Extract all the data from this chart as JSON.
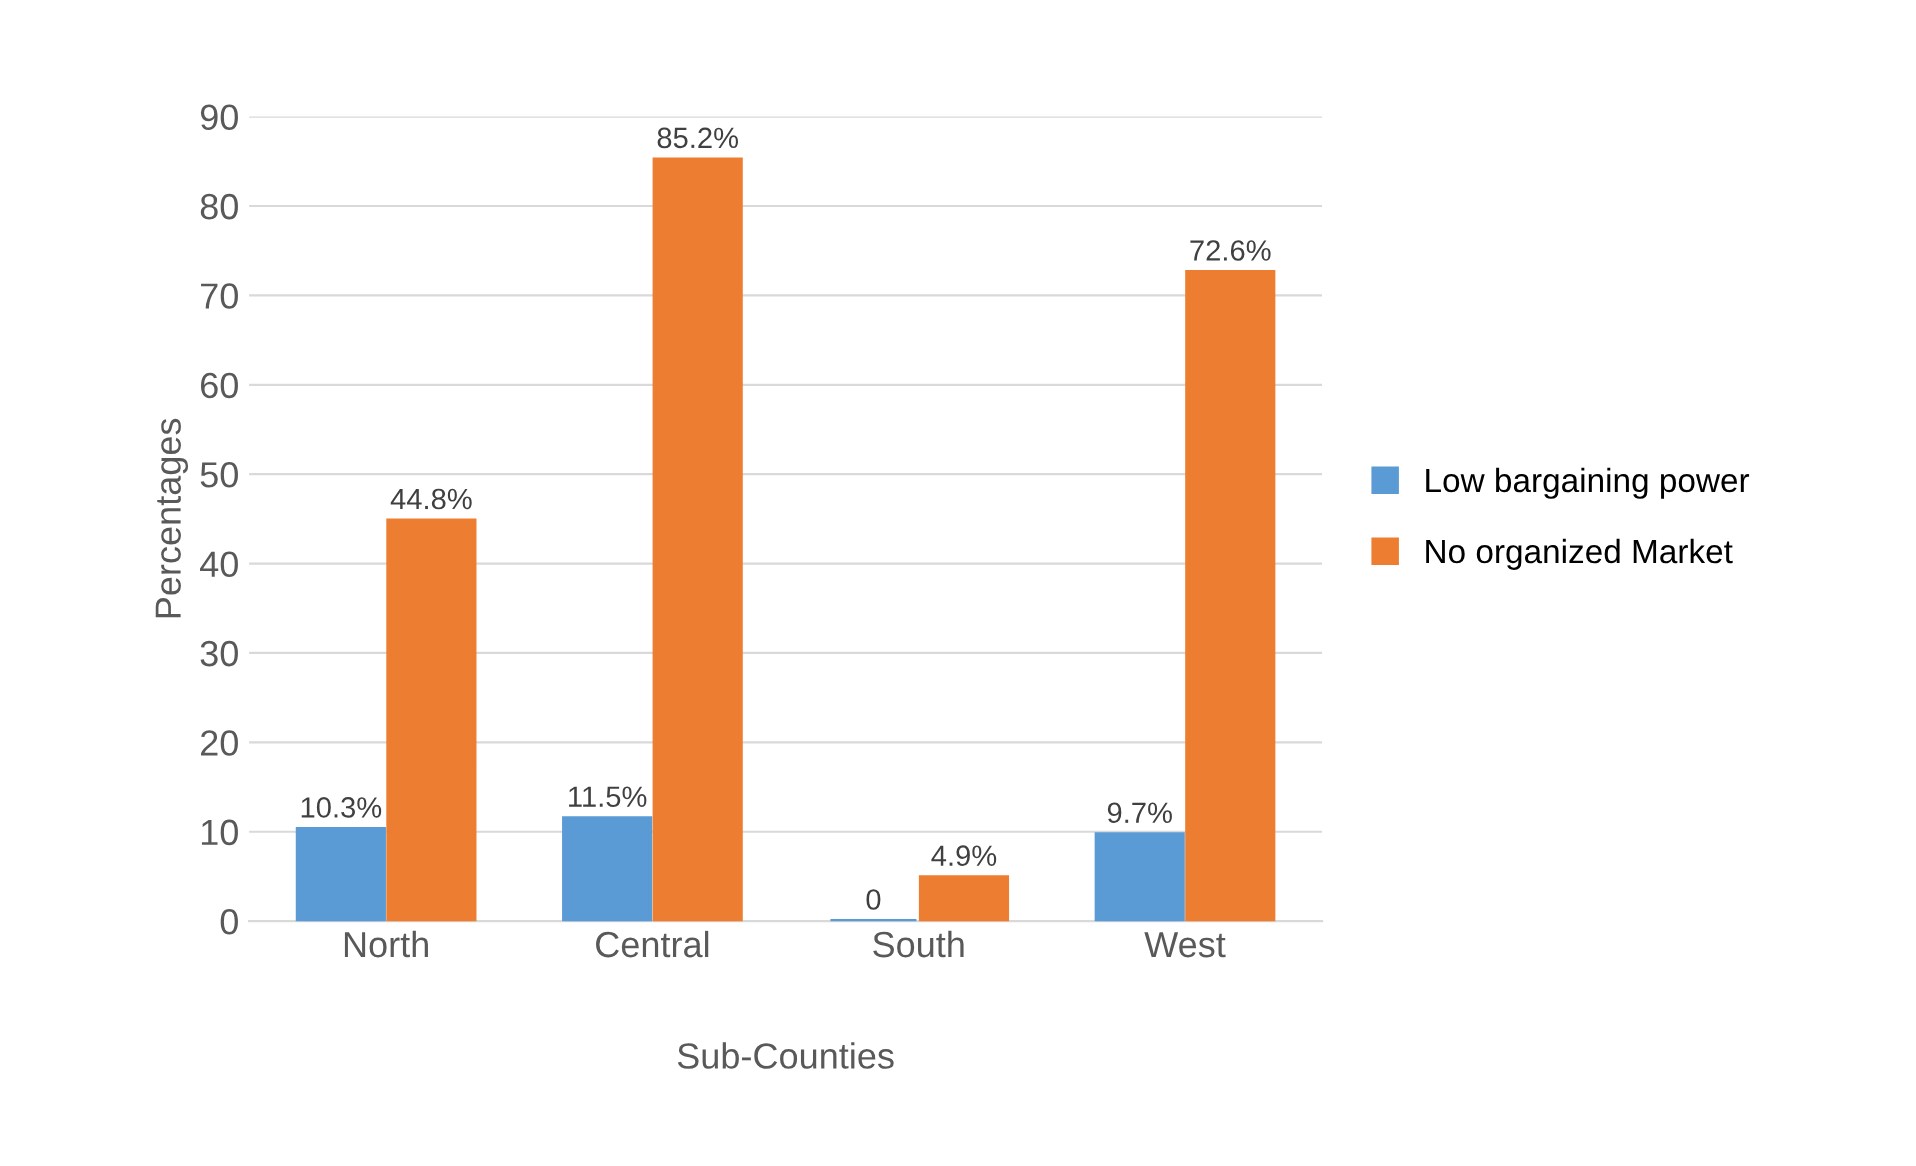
{
  "chart_data": {
    "type": "bar",
    "xlabel": "Sub-Counties",
    "ylabel": "Percentages",
    "categories": [
      "North",
      "Central",
      "South",
      "West"
    ],
    "series": [
      {
        "name": "Low bargaining power",
        "color": "#5b9bd5",
        "values": [
          10.3,
          11.5,
          0,
          9.7
        ],
        "value_labels": [
          "10.3%",
          "11.5%",
          "0",
          "9.7%"
        ]
      },
      {
        "name": "No organized Market",
        "color": "#ed7d31",
        "values": [
          44.8,
          85.2,
          4.9,
          72.6
        ],
        "value_labels": [
          "44.8%",
          "85.2%",
          "4.9%",
          "72.6%"
        ]
      }
    ],
    "ylim": [
      0,
      90
    ],
    "yticks": [
      0,
      10,
      20,
      30,
      40,
      50,
      60,
      70,
      80,
      90
    ],
    "grid": "y",
    "legend": "right"
  }
}
